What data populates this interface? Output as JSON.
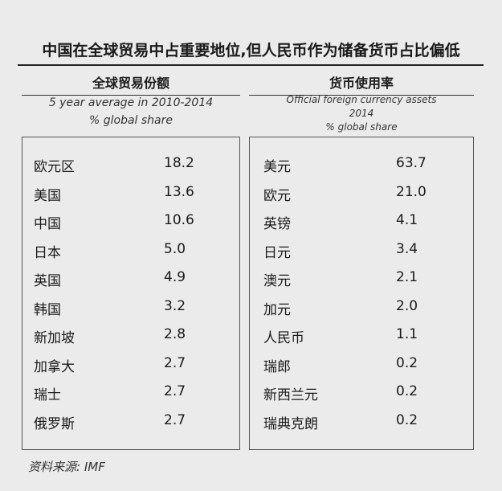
{
  "title": "中国在全球贸易中占重要地位,但人民币作为储备货币占比偏低",
  "panels": [
    {
      "header": "全球贸易份额",
      "subtitle": [
        "5 year average in 2010-2014",
        "% global share"
      ],
      "rows": [
        [
          "欧元区",
          "18.2"
        ],
        [
          "美国",
          "13.6"
        ],
        [
          "中国",
          "10.6"
        ],
        [
          "日本",
          "5.0"
        ],
        [
          "英国",
          "4.9"
        ],
        [
          "韩国",
          "3.2"
        ],
        [
          "新加坡",
          "2.8"
        ],
        [
          "加拿大",
          "2.7"
        ],
        [
          "瑞士",
          "2.7"
        ],
        [
          "俄罗斯",
          "2.7"
        ]
      ]
    },
    {
      "header": "货币使用率",
      "subtitle": [
        "Official foreign currency assets",
        "2014",
        "% global share"
      ],
      "rows": [
        [
          "美元",
          "63.7"
        ],
        [
          "欧元",
          "21.0"
        ],
        [
          "英镑",
          "4.1"
        ],
        [
          "日元",
          "3.4"
        ],
        [
          "澳元",
          "2.1"
        ],
        [
          "加元",
          "2.0"
        ],
        [
          "人民币",
          "1.1"
        ],
        [
          "瑞郎",
          "0.2"
        ],
        [
          "新西兰元",
          "0.2"
        ],
        [
          "瑞典克朗",
          "0.2"
        ]
      ]
    }
  ],
  "source": "资料来源: IMF"
}
